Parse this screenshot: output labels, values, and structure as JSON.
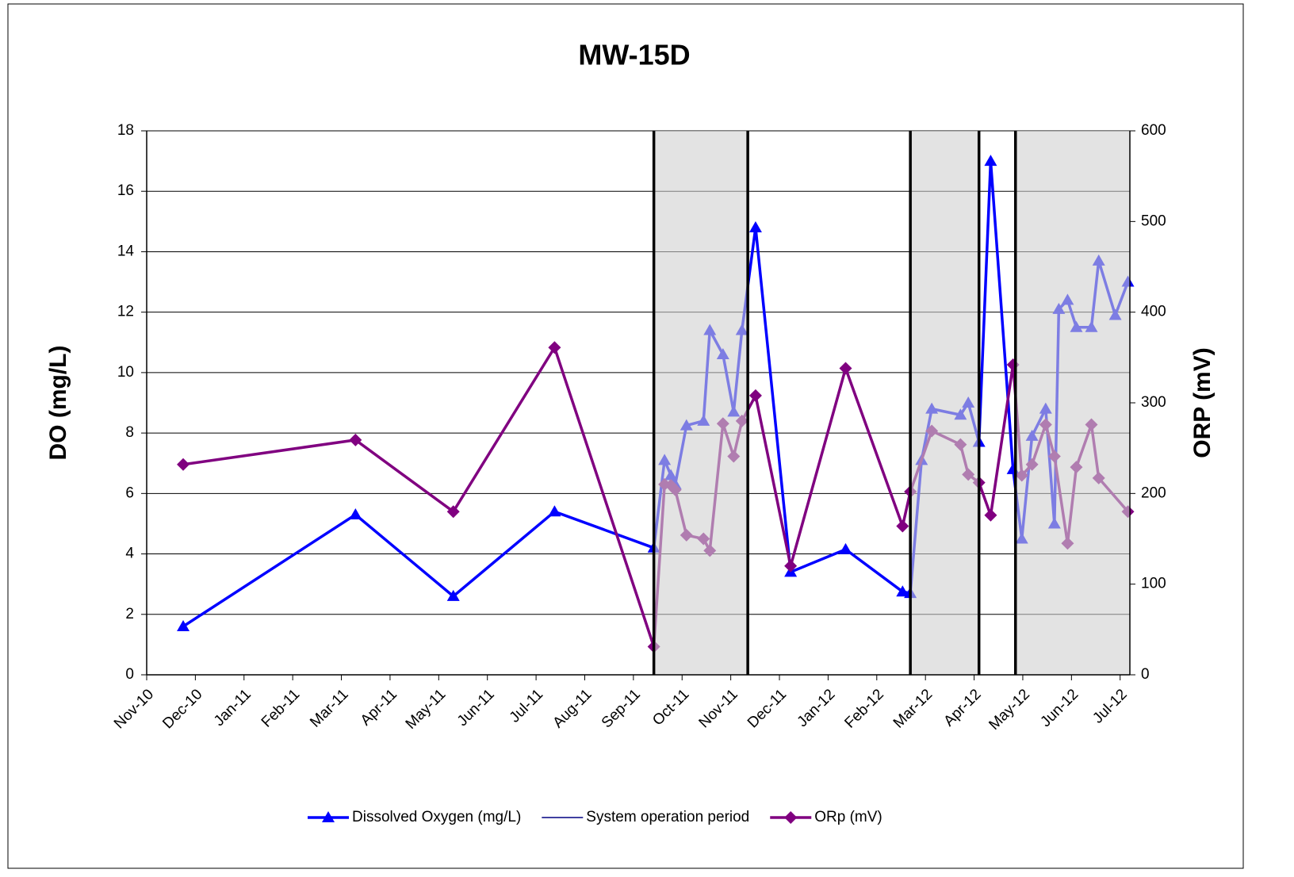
{
  "chart_data": {
    "type": "line",
    "title": "MW-15D",
    "y_label": "DO (mg/L)",
    "y2_label": "ORP (mV)",
    "xlim": [
      0,
      20.2
    ],
    "xticks": [
      {
        "value": 0,
        "label": "Nov-10"
      },
      {
        "value": 1,
        "label": "Dec-10"
      },
      {
        "value": 2,
        "label": "Jan-11"
      },
      {
        "value": 3,
        "label": "Feb-11"
      },
      {
        "value": 4,
        "label": "Mar-11"
      },
      {
        "value": 5,
        "label": "Apr-11"
      },
      {
        "value": 6,
        "label": "May-11"
      },
      {
        "value": 7,
        "label": "Jun-11"
      },
      {
        "value": 8,
        "label": "Jul-11"
      },
      {
        "value": 9,
        "label": "Aug-11"
      },
      {
        "value": 10,
        "label": "Sep-11"
      },
      {
        "value": 11,
        "label": "Oct-11"
      },
      {
        "value": 12,
        "label": "Nov-11"
      },
      {
        "value": 13,
        "label": "Dec-11"
      },
      {
        "value": 14,
        "label": "Jan-12"
      },
      {
        "value": 15,
        "label": "Feb-12"
      },
      {
        "value": 16,
        "label": "Mar-12"
      },
      {
        "value": 17,
        "label": "Apr-12"
      },
      {
        "value": 18,
        "label": "May-12"
      },
      {
        "value": 19,
        "label": "Jun-12"
      },
      {
        "value": 20,
        "label": "Jul-12"
      }
    ],
    "ylim": [
      0,
      18
    ],
    "yticks": [
      0,
      2,
      4,
      6,
      8,
      10,
      12,
      14,
      16,
      18
    ],
    "y2lim": [
      0,
      600
    ],
    "y2ticks": [
      0,
      100,
      200,
      300,
      400,
      500,
      600
    ],
    "grid": true,
    "legend": "bottom",
    "series": [
      {
        "name": "Dissolved Oxygen (mg/L)",
        "color": "#0000ff",
        "marker": "triangle",
        "x": [
          0.75,
          4.29,
          6.3,
          8.38,
          10.42,
          10.64,
          10.77,
          10.86,
          11.09,
          11.44,
          11.57,
          11.84,
          12.06,
          12.23,
          12.51,
          13.23,
          14.36,
          15.53,
          15.69,
          15.92,
          16.13,
          16.72,
          16.88,
          17.1,
          17.34,
          17.8,
          17.98,
          18.19,
          18.47,
          18.65,
          18.74,
          18.92,
          19.1,
          19.41,
          19.56,
          19.9,
          20.16
        ],
        "values": [
          1.6,
          5.3,
          2.6,
          5.4,
          4.2,
          7.1,
          6.6,
          6.3,
          8.25,
          8.4,
          11.4,
          10.6,
          8.7,
          11.4,
          14.8,
          3.4,
          4.15,
          2.75,
          2.7,
          7.1,
          8.8,
          8.6,
          9.0,
          7.7,
          17.0,
          6.8,
          4.5,
          7.9,
          8.8,
          5.0,
          12.1,
          12.4,
          11.5,
          11.5,
          13.7,
          11.9,
          13.0
        ]
      },
      {
        "name": "System operation period",
        "color": "#000080",
        "marker": "vline",
        "x": [
          10.42,
          12.35,
          15.69,
          17.1,
          17.85
        ]
      },
      {
        "name": "ORp (mV)",
        "color": "#800080",
        "marker": "diamond",
        "axis": "y2",
        "x": [
          0.75,
          4.29,
          6.3,
          8.38,
          10.42,
          10.64,
          10.77,
          10.86,
          11.09,
          11.44,
          11.57,
          11.84,
          12.06,
          12.23,
          12.51,
          13.23,
          14.36,
          15.53,
          15.69,
          16.13,
          16.72,
          16.88,
          17.1,
          17.34,
          17.8,
          17.98,
          18.19,
          18.47,
          18.65,
          18.92,
          19.1,
          19.41,
          19.56,
          20.16
        ],
        "values": [
          232,
          259,
          180,
          361,
          31,
          210,
          209,
          204,
          154,
          150,
          137,
          277,
          241,
          280,
          308,
          120,
          338,
          164,
          202,
          269,
          254,
          221,
          212,
          176,
          342,
          220,
          232,
          276,
          241,
          145,
          229,
          276,
          217,
          180
        ]
      }
    ]
  }
}
